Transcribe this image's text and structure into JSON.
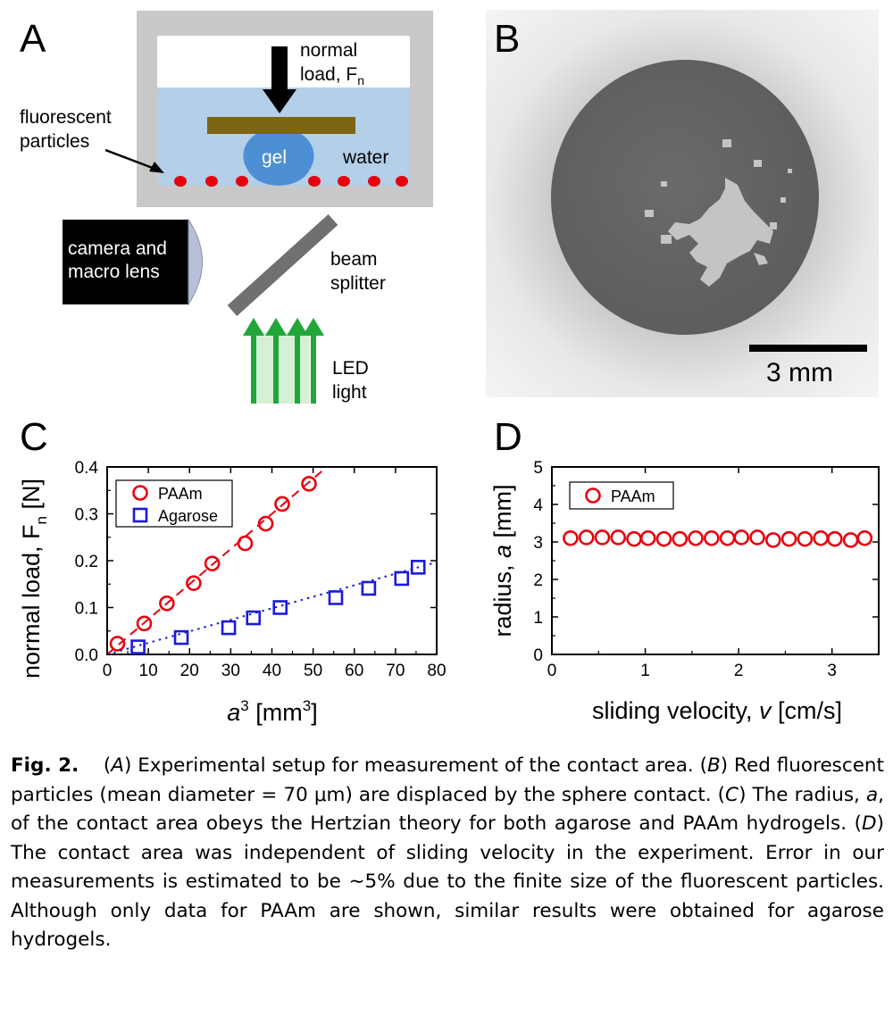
{
  "panels": {
    "a": {
      "letter": "A",
      "labels": {
        "normal_load_line1": "normal",
        "normal_load_line2": "load, F",
        "normal_load_sub": "n",
        "fluorescent_line1": "fluorescent",
        "fluorescent_line2": "particles",
        "gel": "gel",
        "water": "water",
        "camera_line1": "camera and",
        "camera_line2": "macro lens",
        "beam_line1": "beam",
        "beam_line2": "splitter",
        "led_line1": "LED",
        "led_line2": "light"
      },
      "colors": {
        "water": "#b4cfe8",
        "gel": "#4d8fd3",
        "plate": "#7c6514",
        "particles": "#e8000e",
        "frame": "#c8c8c8",
        "led_arrows": "#22a63a"
      }
    },
    "b": {
      "letter": "B",
      "scale_bar_label": "3 mm"
    },
    "c": {
      "letter": "C"
    },
    "d": {
      "letter": "D"
    }
  },
  "chart_data": [
    {
      "type": "scatter",
      "panel": "C",
      "xlabel": "a",
      "xlabel_sup": "3",
      "xlabel_unit": "[mm",
      "xlabel_unit_sup": "3",
      "xlabel_close": "]",
      "ylabel": "normal load, F",
      "ylabel_sub": "n",
      "ylabel_unit": "[N]",
      "xlim": [
        0,
        80
      ],
      "ylim": [
        0,
        0.4
      ],
      "xticks": [
        "0",
        "10",
        "20",
        "30",
        "40",
        "50",
        "60",
        "70",
        "80"
      ],
      "yticks": [
        "0.0",
        "0.1",
        "0.2",
        "0.3",
        "0.4"
      ],
      "legend_position": "top-left",
      "series": [
        {
          "name": "PAAm",
          "marker": "circle",
          "color": "#e8000e",
          "fit": "dashed",
          "fit_slope": 0.0075,
          "x": [
            2.5,
            9,
            14.5,
            21,
            25.5,
            33.5,
            38.5,
            42.5,
            49
          ],
          "y": [
            0.023,
            0.066,
            0.109,
            0.152,
            0.194,
            0.237,
            0.279,
            0.321,
            0.364
          ]
        },
        {
          "name": "Agarose",
          "marker": "square",
          "color": "#1a1adc",
          "fit": "dotted",
          "fit_slope": 0.00246,
          "x": [
            7.5,
            18,
            29.5,
            35.5,
            42,
            55.5,
            63.5,
            71.5,
            75.5
          ],
          "y": [
            0.016,
            0.036,
            0.057,
            0.078,
            0.1,
            0.121,
            0.141,
            0.162,
            0.186
          ]
        }
      ]
    },
    {
      "type": "scatter",
      "panel": "D",
      "xlabel": "sliding velocity, ",
      "xlabel_var": "v",
      "xlabel_unit": " [cm/s]",
      "ylabel": "radius, ",
      "ylabel_var": "a",
      "ylabel_unit": " [mm]",
      "xlim": [
        0,
        3.5
      ],
      "ylim": [
        0,
        5
      ],
      "xticks": [
        "0",
        "1",
        "2",
        "3"
      ],
      "yticks": [
        "0",
        "1",
        "2",
        "3",
        "4",
        "5"
      ],
      "legend_position": "top-left",
      "series": [
        {
          "name": "PAAm",
          "marker": "circle",
          "color": "#e8000e",
          "x": [
            0.2,
            0.37,
            0.54,
            0.71,
            0.88,
            1.03,
            1.2,
            1.37,
            1.54,
            1.71,
            1.88,
            2.03,
            2.2,
            2.37,
            2.54,
            2.71,
            2.88,
            3.03,
            3.2,
            3.35
          ],
          "y": [
            3.1,
            3.12,
            3.12,
            3.12,
            3.08,
            3.1,
            3.08,
            3.08,
            3.1,
            3.1,
            3.1,
            3.12,
            3.12,
            3.05,
            3.08,
            3.08,
            3.1,
            3.08,
            3.05,
            3.1
          ]
        }
      ]
    }
  ],
  "caption": {
    "fig_label": "Fig. 2.",
    "a_letter": "A",
    "a_text": ") Experimental setup for measurement of the contact area. (",
    "b_letter": "B",
    "b_text": ") Red fluorescent particles (mean diameter = 70 μm) are displaced by the sphere contact. (",
    "c_letter": "C",
    "c_text1": ") The radius, ",
    "c_var": "a",
    "c_text2": ", of the contact area obeys the Hertzian theory for both agarose and PAAm hydrogels. (",
    "d_letter": "D",
    "d_text": ") The contact area was independent of sliding velocity in the experiment. Error in our measurements is estimated to be ∼5% due to the finite size of the fluorescent particles. Although only data for PAAm are shown, similar results were obtained for agarose hydrogels."
  }
}
